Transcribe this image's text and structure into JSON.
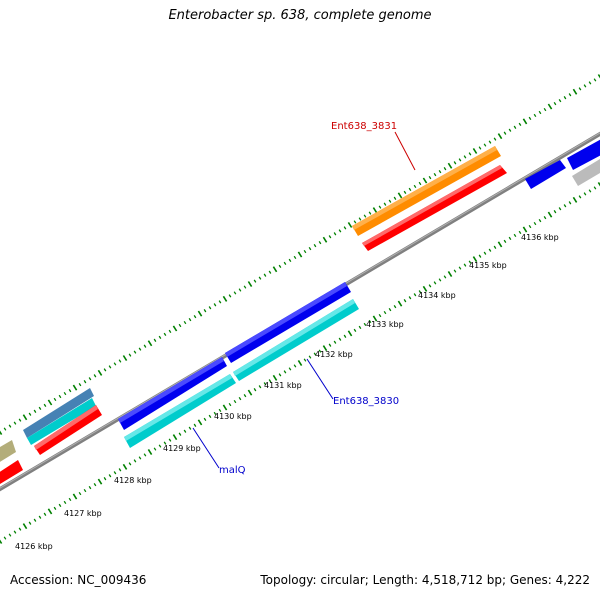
{
  "title": "Enterobacter sp. 638, complete genome",
  "footer": {
    "accession": "Accession: NC_009436",
    "summary": "Topology: circular; Length: 4,518,712 bp; Genes: 4,222"
  },
  "ticks": [
    "4126 kbp",
    "4127 kbp",
    "4128 kbp",
    "4129 kbp",
    "4130 kbp",
    "4131 kbp",
    "4132 kbp",
    "4133 kbp",
    "4134 kbp",
    "4135 kbp",
    "4136 kbp"
  ],
  "gene_labels": [
    {
      "text": "Ent638_3831",
      "color": "#cc0000"
    },
    {
      "text": "Ent638_3830",
      "color": "#0000cc"
    },
    {
      "text": "malQ",
      "color": "#0000cc"
    }
  ],
  "colors": {
    "backbone": "#808080",
    "tick_marks": "#008000",
    "orange": "#ff8c00",
    "red": "#ff0000",
    "blue": "#0000ee",
    "cyan": "#00cccc",
    "steelblue": "#4682b4",
    "khaki": "#b3ad7a",
    "gray": "#bbbbbb"
  }
}
